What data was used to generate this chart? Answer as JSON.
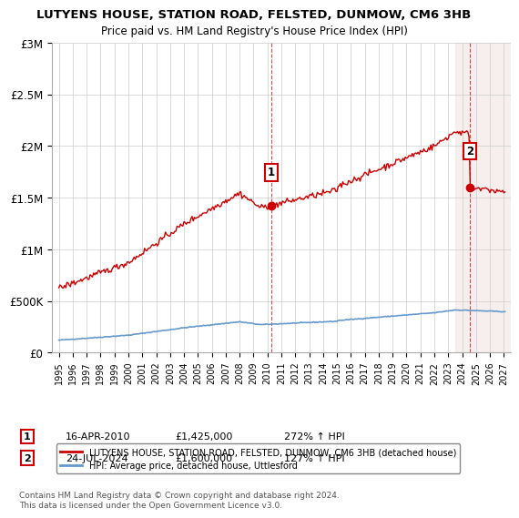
{
  "title": "LUTYENS HOUSE, STATION ROAD, FELSTED, DUNMOW, CM6 3HB",
  "subtitle": "Price paid vs. HM Land Registry's House Price Index (HPI)",
  "legend_line1": "LUTYENS HOUSE, STATION ROAD, FELSTED, DUNMOW, CM6 3HB (detached house)",
  "legend_line2": "HPI: Average price, detached house, Uttlesford",
  "annotation1_label": "1",
  "annotation1_date": "16-APR-2010",
  "annotation1_price": "£1,425,000",
  "annotation1_hpi": "272% ↑ HPI",
  "annotation2_label": "2",
  "annotation2_date": "24-JUL-2024",
  "annotation2_price": "£1,600,000",
  "annotation2_hpi": "127% ↑ HPI",
  "footnote": "Contains HM Land Registry data © Crown copyright and database right 2024.\nThis data is licensed under the Open Government Licence v3.0.",
  "sale1_x": 2010.29,
  "sale1_y": 1425000,
  "sale2_x": 2024.56,
  "sale2_y": 1600000,
  "hpi_color": "#6699cc",
  "price_color": "#cc0000",
  "annotation_box_color": "#cc0000",
  "background_color": "#ffffff",
  "ylim": [
    0,
    3000000
  ],
  "xlim_start": 1994.5,
  "xlim_end": 2027.5
}
